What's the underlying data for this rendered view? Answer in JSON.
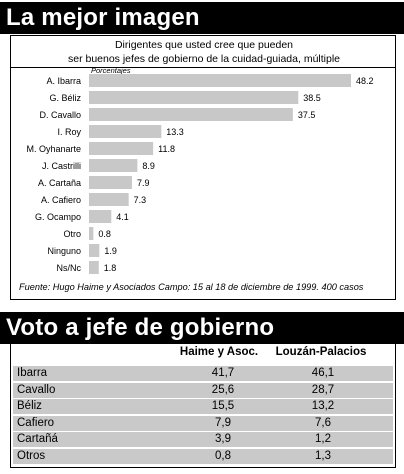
{
  "header1": "La mejor imagen",
  "header2": "Voto a jefe de gobierno",
  "chart_data": {
    "type": "bar",
    "orientation": "horizontal",
    "title_line1": "Dirigentes que usted cree que pueden",
    "title_line2": "ser buenos jefes de gobierno de la cuidad-guiada, múltiple",
    "unit_label": "Porcentajes",
    "categories": [
      "A. Ibarra",
      "G. Béliz",
      "D. Cavallo",
      "I. Roy",
      "M. Oyhanarte",
      "J. Castrilli",
      "A. Cartaña",
      "A. Cafiero",
      "G. Ocampo",
      "Otro",
      "Ninguno",
      "Ns/Nc"
    ],
    "values": [
      48.2,
      38.5,
      37.5,
      13.3,
      11.8,
      8.9,
      7.9,
      7.3,
      4.1,
      0.8,
      1.9,
      1.8
    ],
    "value_labels": [
      "48.2",
      "38.5",
      "37.5",
      "13.3",
      "11.8",
      "8.9",
      "7.9",
      "7.3",
      "4.1",
      "0.8",
      "1.9",
      "1.8"
    ],
    "xlim": [
      0,
      48.2
    ],
    "bar_color": "#c8c8c8",
    "source": "Fuente: Hugo Haime y Asociados Campo: 15 al 18 de diciembre de 1999. 400 casos"
  },
  "table": {
    "headers": [
      "Haime y Asoc.",
      "Louzán-Palacios"
    ],
    "rows": [
      [
        "Ibarra",
        "41,7",
        "46,1"
      ],
      [
        "Cavallo",
        "25,6",
        "28,7"
      ],
      [
        "Béliz",
        "15,5",
        "13,2"
      ],
      [
        "Cafiero",
        "7,9",
        "7,6"
      ],
      [
        "Cartañá",
        "3,9",
        "1,2"
      ],
      [
        "Otros",
        "0,8",
        "1,3"
      ]
    ],
    "row_color": "#c9c9c9"
  }
}
